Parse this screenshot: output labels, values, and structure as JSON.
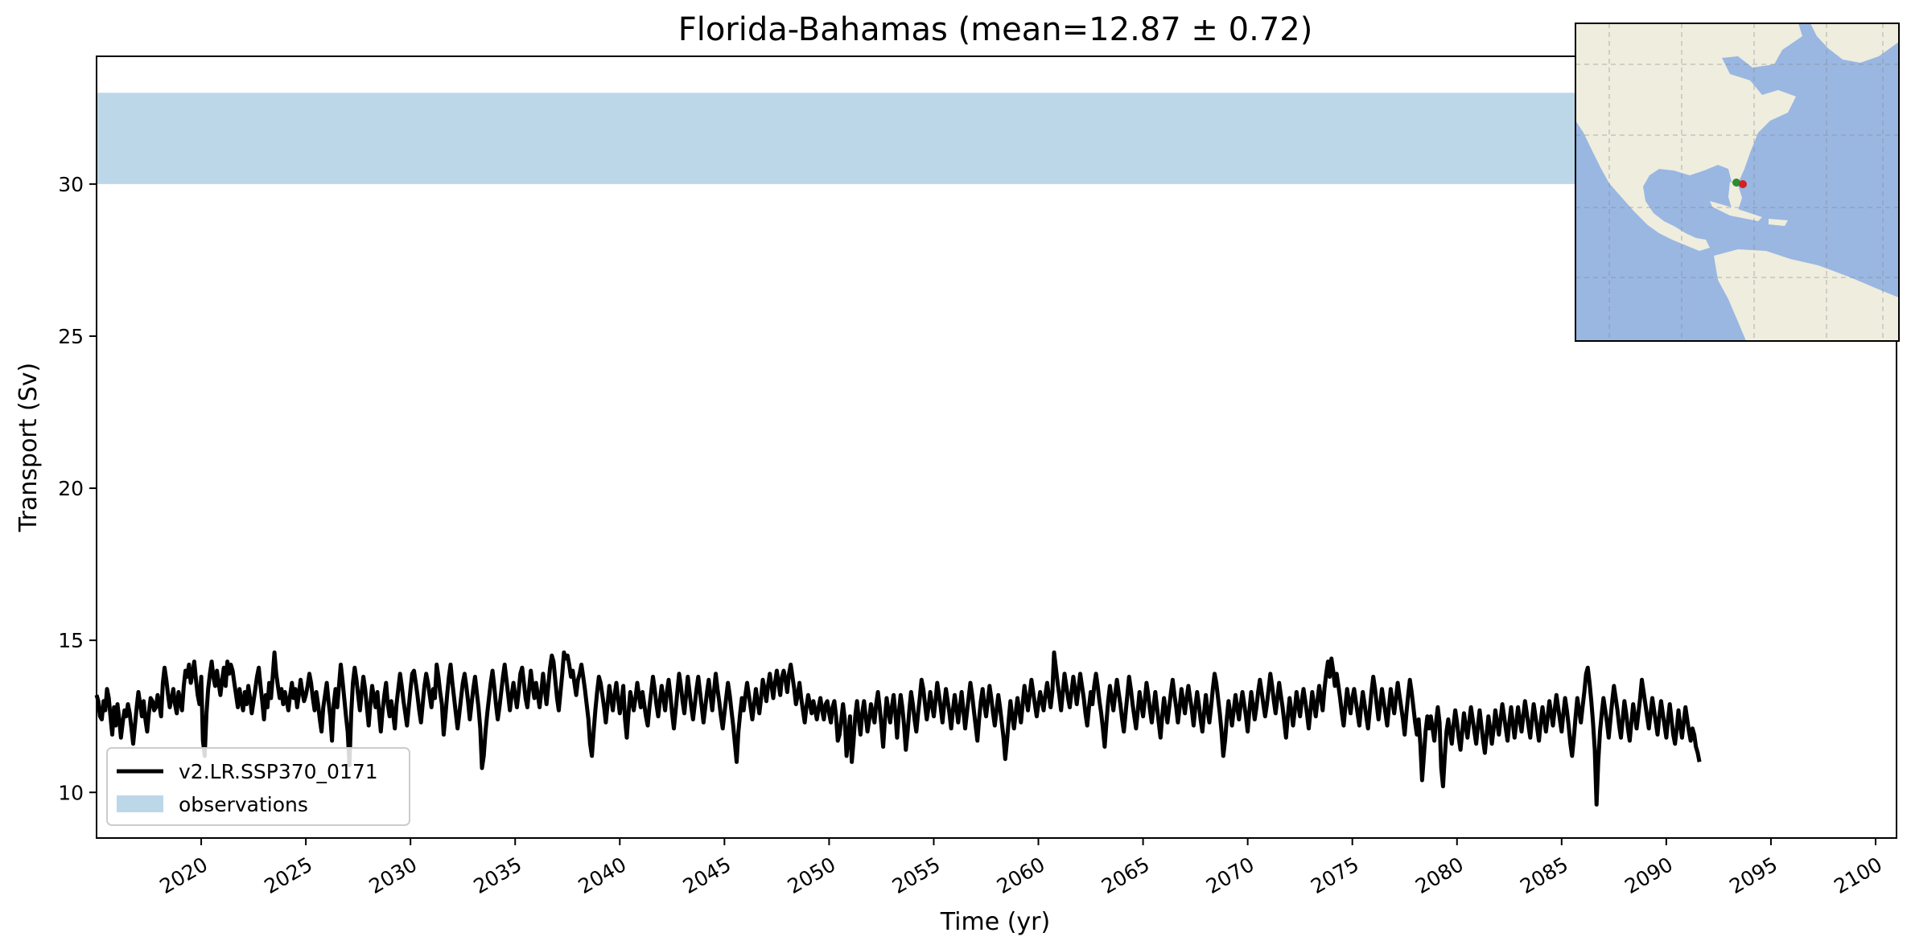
{
  "chart_data": {
    "type": "line",
    "title": "Florida-Bahamas (mean=12.87 ± 0.72)",
    "xlabel": "Time (yr)",
    "ylabel": "Transport (Sv)",
    "xlim": [
      2015.0,
      2101.0
    ],
    "ylim": [
      8.5,
      34.2
    ],
    "xticks": [
      2020,
      2025,
      2030,
      2035,
      2040,
      2045,
      2050,
      2055,
      2060,
      2065,
      2070,
      2075,
      2080,
      2085,
      2090,
      2095,
      2100
    ],
    "yticks": [
      10,
      15,
      20,
      25,
      30
    ],
    "grid": false,
    "legend_position": "lower-left",
    "series": [
      {
        "name": "v2.LR.SSP370_0171",
        "color": "#000000",
        "x_start": 2015.0,
        "x_step": 0.0833333,
        "values": [
          13.2,
          13.0,
          12.5,
          12.4,
          13.0,
          12.7,
          13.4,
          13.1,
          12.5,
          11.9,
          12.8,
          12.2,
          12.9,
          12.4,
          11.8,
          12.3,
          12.7,
          12.5,
          12.9,
          12.6,
          12.1,
          11.6,
          12.2,
          12.8,
          13.3,
          12.9,
          12.5,
          13.0,
          12.4,
          12.0,
          12.6,
          13.1,
          13.0,
          12.7,
          12.8,
          13.2,
          12.9,
          12.5,
          13.6,
          14.1,
          13.7,
          13.2,
          12.8,
          13.1,
          13.4,
          12.9,
          12.6,
          13.3,
          13.0,
          12.7,
          13.5,
          14.0,
          13.8,
          14.2,
          13.6,
          13.9,
          14.3,
          13.7,
          13.2,
          12.9,
          13.8,
          11.7,
          11.2,
          12.6,
          13.4,
          13.9,
          14.3,
          13.8,
          13.5,
          14.0,
          13.6,
          13.2,
          13.7,
          14.1,
          13.5,
          14.3,
          13.9,
          14.2,
          14.0,
          13.6,
          13.2,
          12.8,
          13.4,
          13.0,
          12.7,
          13.3,
          12.9,
          13.5,
          13.1,
          12.6,
          13.0,
          13.4,
          13.8,
          14.1,
          13.5,
          13.0,
          12.4,
          13.2,
          12.8,
          13.6,
          13.1,
          13.8,
          14.6,
          13.9,
          13.5,
          13.1,
          13.4,
          12.9,
          13.3,
          13.0,
          12.7,
          13.2,
          13.6,
          13.1,
          13.4,
          12.8,
          13.2,
          13.7,
          13.3,
          13.0,
          13.2,
          13.5,
          13.9,
          13.6,
          13.1,
          12.7,
          13.3,
          12.9,
          12.4,
          12.0,
          12.8,
          13.2,
          13.6,
          13.0,
          12.5,
          11.7,
          12.9,
          13.4,
          12.8,
          13.5,
          14.2,
          13.7,
          13.1,
          12.5,
          12.0,
          10.9,
          12.6,
          13.6,
          14.1,
          13.7,
          13.2,
          12.7,
          13.3,
          13.8,
          13.4,
          12.8,
          12.2,
          12.9,
          13.5,
          13.1,
          12.8,
          13.3,
          12.6,
          12.0,
          12.7,
          13.2,
          13.6,
          12.9,
          12.5,
          13.0,
          12.6,
          12.1,
          12.9,
          13.4,
          13.9,
          13.5,
          13.0,
          12.6,
          12.2,
          12.8,
          13.4,
          13.9,
          14.0,
          13.6,
          13.2,
          12.7,
          12.3,
          12.9,
          13.5,
          13.9,
          13.6,
          13.2,
          12.8,
          13.4,
          13.1,
          14.2,
          13.8,
          13.3,
          12.9,
          11.9,
          12.5,
          13.2,
          13.8,
          14.2,
          13.6,
          13.1,
          12.6,
          12.1,
          12.6,
          13.1,
          13.6,
          13.9,
          13.5,
          13.0,
          12.4,
          12.9,
          13.4,
          13.8,
          13.3,
          12.8,
          12.1,
          10.8,
          11.2,
          12.0,
          12.6,
          13.1,
          13.6,
          14.0,
          13.5,
          12.9,
          12.4,
          12.8,
          13.3,
          13.8,
          14.2,
          13.7,
          13.2,
          12.7,
          13.2,
          13.6,
          13.2,
          12.8,
          13.3,
          13.9,
          14.1,
          13.6,
          13.1,
          12.8,
          13.4,
          14.0,
          13.5,
          13.1,
          13.6,
          13.2,
          12.8,
          13.3,
          13.9,
          13.4,
          12.9,
          13.5,
          14.1,
          14.5,
          14.3,
          13.7,
          13.1,
          12.7,
          13.3,
          13.9,
          14.6,
          14.4,
          14.5,
          14.2,
          13.8,
          14.0,
          13.6,
          13.2,
          13.7,
          13.9,
          14.2,
          13.8,
          13.4,
          12.9,
          12.4,
          11.6,
          11.2,
          12.0,
          12.7,
          13.3,
          13.8,
          13.6,
          13.2,
          12.8,
          12.3,
          12.9,
          13.5,
          13.1,
          12.7,
          13.2,
          13.6,
          13.1,
          12.6,
          13.0,
          13.5,
          12.4,
          11.8,
          12.6,
          13.3,
          13.0,
          12.7,
          13.1,
          13.6,
          13.2,
          12.8,
          13.3,
          12.9,
          12.5,
          12.2,
          12.8,
          13.3,
          13.8,
          13.4,
          12.9,
          12.5,
          13.0,
          13.5,
          13.1,
          12.7,
          13.3,
          13.7,
          13.2,
          12.6,
          12.1,
          12.7,
          13.3,
          13.9,
          13.5,
          13.0,
          12.6,
          13.2,
          13.8,
          13.3,
          12.8,
          12.4,
          12.9,
          13.4,
          13.8,
          13.3,
          12.8,
          12.3,
          12.8,
          13.3,
          13.7,
          13.2,
          12.7,
          13.3,
          13.9,
          13.4,
          13.0,
          12.5,
          12.1,
          12.6,
          13.1,
          13.6,
          13.2,
          12.7,
          12.2,
          11.6,
          11.0,
          12.0,
          12.6,
          13.1,
          12.7,
          13.2,
          13.6,
          13.2,
          12.8,
          12.4,
          12.9,
          13.4,
          13.0,
          12.6,
          13.1,
          13.7,
          13.4,
          13.0,
          13.5,
          13.9,
          13.5,
          13.1,
          13.6,
          14.0,
          13.6,
          13.2,
          13.8,
          14.0,
          13.7,
          13.3,
          13.9,
          14.2,
          13.8,
          13.4,
          12.9,
          13.2,
          13.6,
          13.1,
          12.7,
          12.3,
          12.8,
          13.2,
          12.9,
          12.6,
          13.0,
          12.7,
          12.4,
          12.8,
          13.1,
          12.7,
          12.4,
          12.9,
          13.0,
          12.6,
          12.3,
          12.8,
          13.0,
          12.5,
          11.7,
          11.9,
          12.4,
          12.9,
          12.4,
          11.2,
          11.8,
          12.5,
          11.0,
          11.7,
          12.5,
          13.0,
          12.4,
          11.9,
          12.6,
          13.0,
          12.5,
          12.0,
          12.4,
          12.9,
          12.6,
          12.3,
          12.9,
          13.3,
          12.8,
          12.2,
          11.5,
          12.4,
          13.1,
          12.7,
          12.3,
          12.8,
          13.2,
          12.6,
          11.8,
          12.6,
          13.2,
          12.8,
          12.2,
          11.4,
          12.0,
          12.7,
          13.3,
          12.9,
          12.4,
          12.0,
          12.6,
          13.1,
          13.7,
          13.4,
          12.9,
          12.4,
          12.8,
          13.3,
          12.9,
          12.5,
          13.0,
          13.6,
          13.2,
          12.8,
          12.3,
          12.9,
          13.4,
          13.0,
          12.6,
          12.1,
          12.7,
          13.2,
          12.8,
          12.3,
          12.8,
          13.3,
          12.7,
          12.1,
          12.6,
          13.1,
          13.6,
          13.2,
          12.7,
          12.2,
          11.7,
          12.4,
          13.0,
          13.4,
          12.9,
          12.5,
          13.0,
          13.5,
          13.1,
          12.6,
          12.2,
          12.7,
          13.2,
          12.8,
          12.3,
          11.8,
          11.1,
          11.7,
          12.4,
          13.0,
          12.5,
          12.1,
          12.6,
          13.1,
          12.7,
          12.3,
          12.9,
          13.5,
          13.1,
          12.7,
          13.2,
          13.7,
          13.3,
          12.9,
          12.5,
          12.9,
          13.3,
          13.0,
          12.7,
          13.2,
          13.6,
          13.2,
          12.8,
          13.3,
          14.6,
          14.1,
          13.6,
          13.2,
          12.7,
          13.3,
          13.9,
          13.5,
          13.1,
          12.8,
          13.3,
          13.8,
          13.4,
          12.9,
          13.4,
          13.9,
          13.5,
          13.1,
          12.6,
          12.2,
          12.8,
          13.3,
          12.9,
          13.5,
          13.9,
          13.5,
          13.0,
          12.6,
          12.1,
          11.5,
          12.3,
          13.0,
          13.5,
          13.1,
          12.7,
          13.2,
          13.7,
          13.3,
          12.9,
          12.4,
          12.0,
          12.6,
          13.2,
          13.8,
          13.4,
          12.9,
          12.5,
          12.1,
          12.7,
          13.3,
          12.9,
          12.5,
          13.0,
          13.6,
          13.2,
          12.7,
          12.3,
          12.8,
          13.3,
          12.8,
          12.3,
          11.8,
          12.5,
          13.1,
          12.7,
          12.3,
          12.8,
          13.3,
          13.7,
          13.2,
          12.8,
          12.3,
          12.8,
          13.4,
          13.0,
          12.6,
          13.1,
          13.5,
          13.1,
          12.7,
          12.2,
          12.8,
          13.3,
          12.9,
          12.4,
          12.0,
          12.6,
          13.2,
          12.7,
          12.3,
          12.8,
          13.4,
          13.9,
          13.6,
          13.1,
          12.6,
          12.0,
          11.2,
          11.7,
          12.4,
          13.0,
          12.6,
          12.2,
          12.7,
          13.2,
          12.8,
          12.4,
          12.9,
          13.3,
          12.9,
          12.5,
          12.0,
          12.7,
          13.3,
          12.9,
          12.4,
          12.8,
          13.3,
          13.7,
          13.3,
          12.9,
          12.5,
          12.9,
          13.4,
          13.9,
          13.5,
          13.0,
          12.6,
          13.1,
          13.6,
          13.2,
          12.8,
          12.3,
          11.8,
          12.5,
          13.1,
          12.7,
          12.2,
          12.7,
          13.3,
          12.9,
          12.5,
          13.0,
          13.4,
          13.0,
          12.6,
          12.1,
          12.7,
          13.3,
          12.9,
          12.5,
          13.0,
          13.5,
          13.1,
          12.7,
          13.4,
          13.9,
          14.3,
          13.8,
          14.4,
          14.0,
          13.5,
          13.9,
          13.5,
          13.1,
          12.6,
          12.2,
          12.8,
          13.4,
          13.0,
          12.6,
          13.1,
          13.4,
          13.0,
          12.6,
          12.2,
          12.8,
          13.3,
          12.9,
          12.5,
          12.1,
          12.7,
          13.3,
          13.8,
          13.4,
          12.9,
          12.4,
          12.9,
          13.4,
          13.0,
          12.6,
          12.2,
          12.8,
          13.4,
          13.0,
          12.6,
          13.1,
          13.6,
          13.2,
          12.8,
          12.4,
          11.9,
          12.6,
          13.2,
          13.7,
          13.3,
          12.8,
          12.3,
          11.9,
          12.4,
          11.6,
          10.4,
          11.2,
          12.0,
          12.5,
          12.1,
          12.5,
          12.1,
          11.7,
          12.3,
          12.8,
          12.3,
          10.8,
          10.2,
          11.2,
          12.0,
          12.4,
          12.0,
          11.6,
          12.2,
          12.7,
          12.3,
          11.8,
          11.4,
          12.0,
          12.6,
          12.2,
          11.8,
          12.3,
          12.8,
          12.4,
          12.0,
          11.6,
          12.2,
          12.7,
          12.2,
          11.7,
          11.3,
          11.9,
          12.5,
          12.1,
          11.6,
          12.1,
          12.7,
          12.3,
          11.9,
          12.4,
          12.9,
          12.5,
          12.1,
          11.7,
          12.3,
          12.8,
          12.3,
          11.8,
          12.3,
          12.8,
          12.4,
          12.0,
          12.5,
          13.0,
          12.6,
          12.2,
          11.8,
          12.4,
          12.9,
          12.5,
          12.1,
          11.7,
          12.3,
          12.8,
          12.4,
          12.0,
          12.5,
          13.0,
          12.6,
          12.2,
          12.7,
          13.2,
          12.8,
          12.4,
          12.0,
          12.6,
          13.1,
          12.7,
          12.2,
          11.6,
          11.2,
          11.8,
          12.5,
          13.1,
          12.7,
          12.3,
          12.8,
          13.3,
          13.9,
          14.1,
          13.6,
          13.0,
          12.3,
          11.4,
          9.6,
          11.0,
          12.0,
          12.6,
          13.1,
          12.7,
          12.3,
          11.8,
          12.4,
          13.0,
          13.5,
          13.1,
          12.7,
          12.2,
          11.8,
          12.4,
          13.0,
          12.6,
          12.1,
          11.7,
          12.3,
          12.9,
          12.5,
          12.1,
          12.6,
          13.1,
          13.7,
          13.3,
          12.9,
          12.5,
          12.1,
          12.6,
          13.1,
          12.7,
          12.3,
          11.9,
          12.5,
          13.0,
          12.6,
          12.2,
          11.8,
          12.4,
          12.9,
          12.4,
          11.9,
          11.6,
          12.1,
          12.7,
          12.2,
          11.8,
          12.3,
          12.8,
          12.4,
          12.0,
          11.7,
          12.1,
          11.9,
          11.5,
          11.3,
          11.0
        ]
      }
    ],
    "observations": {
      "label": "observations",
      "low": 30.0,
      "high": 33.0,
      "color": "#bcd7e8"
    },
    "legend": [
      {
        "label": "v2.LR.SSP370_0171",
        "style": "line",
        "color": "#000000"
      },
      {
        "label": "observations",
        "style": "patch",
        "color": "#bcd7e8"
      }
    ],
    "inset_map": {
      "description_icons": [
        "map-inset"
      ],
      "land_color": "#efedde",
      "ocean_color": "#9ab7e2",
      "markers": [
        {
          "label": "start-point",
          "color": "#2e8b2e"
        },
        {
          "label": "end-point",
          "color": "#d32222"
        }
      ]
    }
  }
}
